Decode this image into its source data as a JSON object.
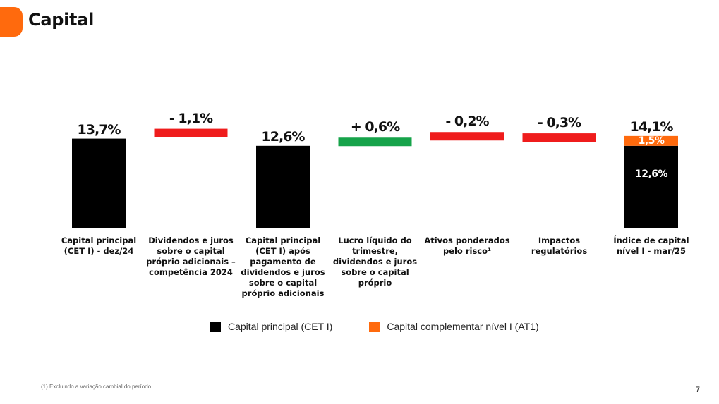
{
  "header": {
    "title": "Capital"
  },
  "colors": {
    "accent": "#ff6a0d",
    "black": "#000000",
    "negative": "#ef1c1c",
    "positive": "#16a34a",
    "orange": "#ff6a0d"
  },
  "chart_data": {
    "type": "bar",
    "subtype": "waterfall",
    "categories": [
      "Capital principal (CET I) - dez/24",
      "Dividendos e juros sobre o capital próprio adicionais – competência 2024",
      "Capital principal (CET I) após pagamento de dividendos e juros sobre o capital próprio adicionais",
      "Lucro líquido do trimestre, dividendos e juros sobre o capital próprio",
      "Ativos ponderados pelo risco¹",
      "Impactos regulatórios",
      "Índice de capital nível I - mar/25"
    ],
    "values": [
      13.7,
      -1.1,
      12.6,
      0.6,
      -0.2,
      -0.3,
      14.1
    ],
    "value_labels": [
      "13,7%",
      "- 1,1%",
      "12,6%",
      "+ 0,6%",
      "- 0,2%",
      "- 0,3%",
      "14,1%"
    ],
    "measures": [
      "total",
      "relative",
      "total",
      "relative",
      "relative",
      "relative",
      "total"
    ],
    "final_stack": [
      {
        "series": "Capital principal (CET I)",
        "value": 12.6,
        "label": "12,6%"
      },
      {
        "series": "Capital complementar nível I (AT1)",
        "value": 1.5,
        "label": "1,5%"
      }
    ],
    "series": [
      {
        "name": "Capital principal (CET I)",
        "color": "#000000"
      },
      {
        "name": "Capital complementar nível I (AT1)",
        "color": "#ff6a0d"
      }
    ]
  },
  "footnote": "(1) Excluindo a variação cambial do período.",
  "page_number": "7"
}
